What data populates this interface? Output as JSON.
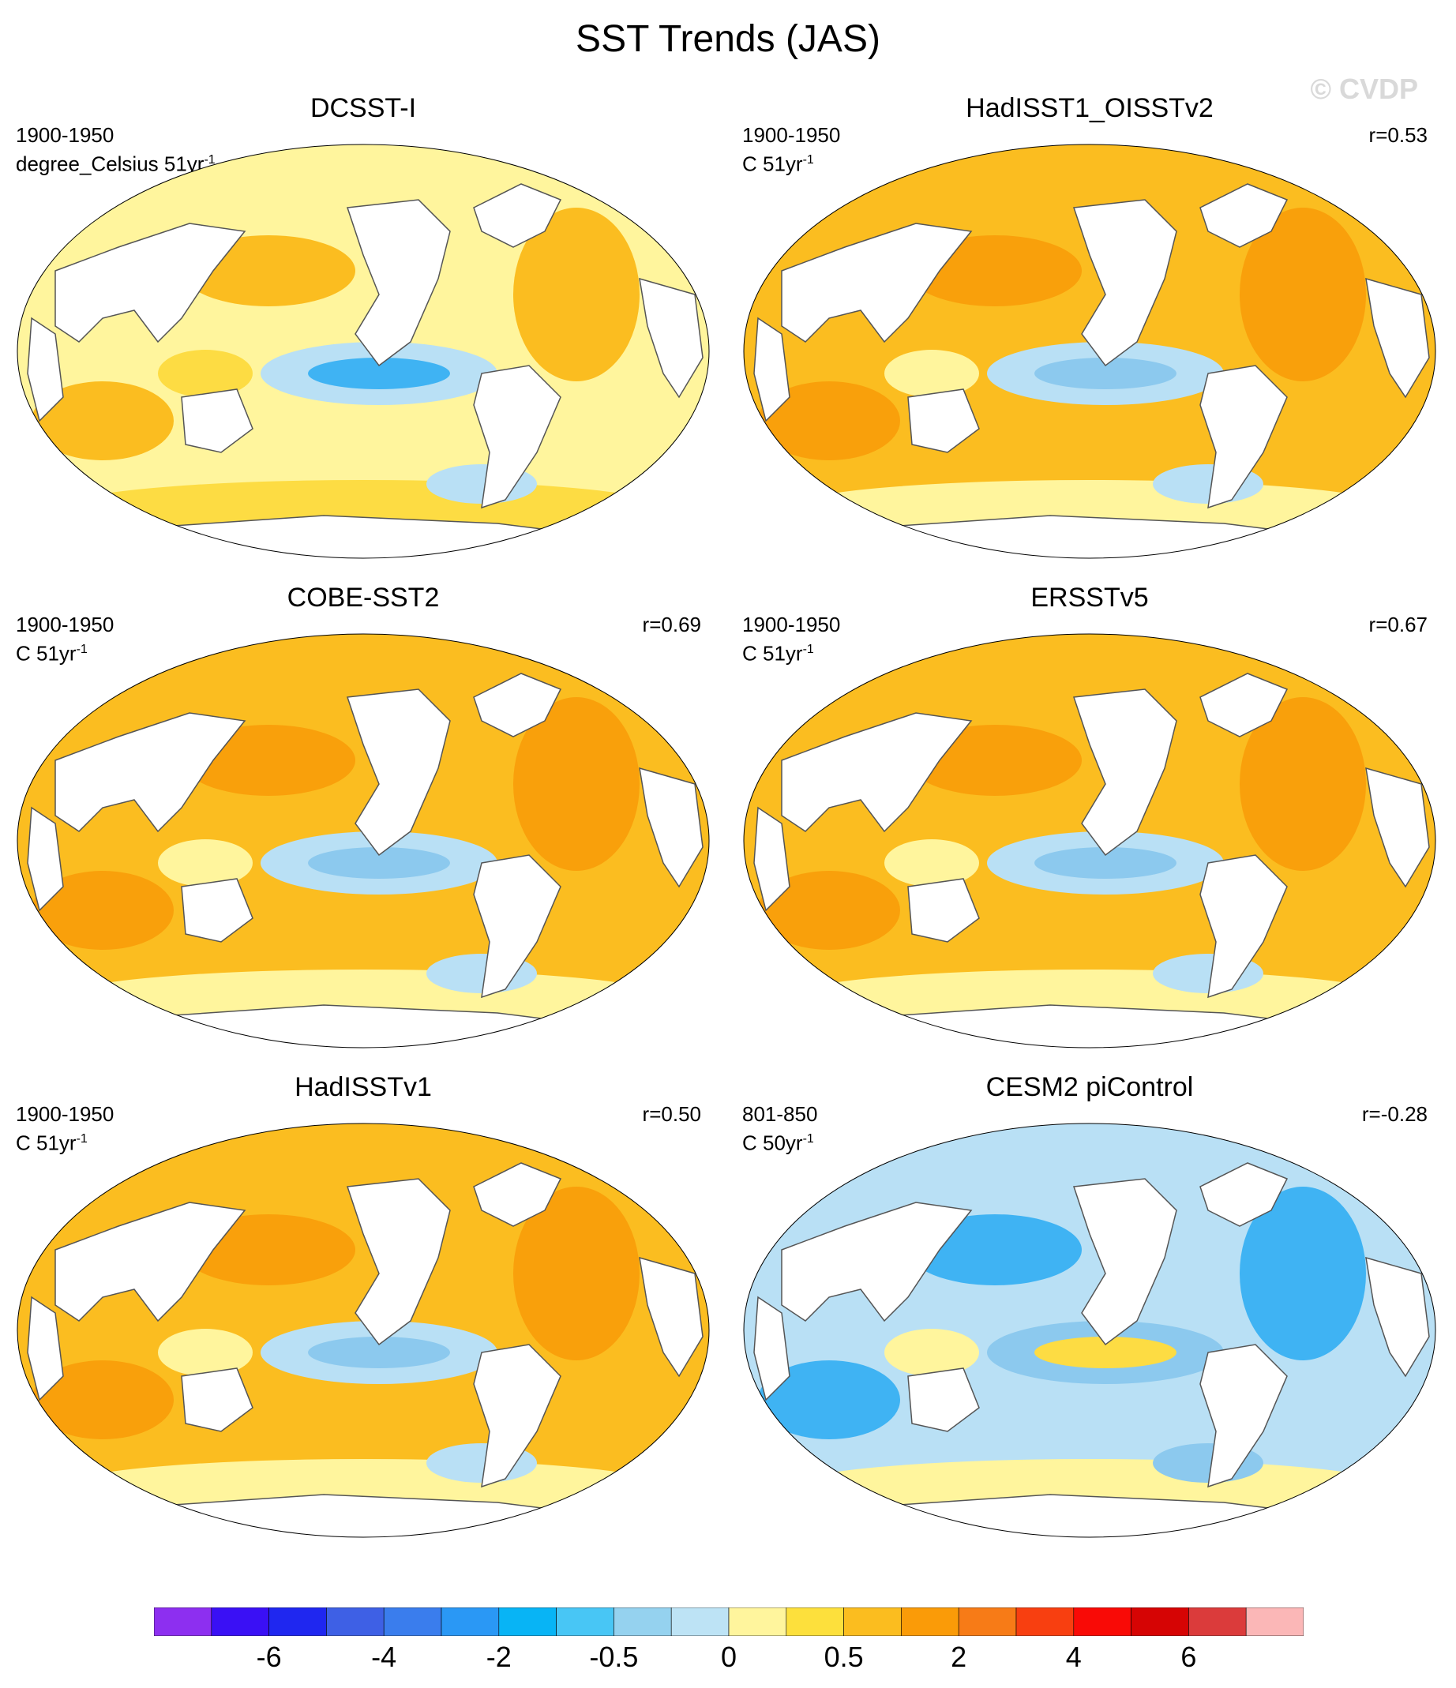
{
  "title": "SST Trends (JAS)",
  "watermark": "© CVDP",
  "colors": {
    "land": "#ffffff",
    "coast": "#555555",
    "neutral_pos": "#fff59d",
    "neutral_neg": "#b9e0f5",
    "warm1": "#fddc43",
    "warm2": "#fbbd20",
    "warm3": "#f9a00b",
    "cool1": "#8cc9ee",
    "cool2": "#3fb3f3"
  },
  "panels": [
    {
      "name": "DCSST-I",
      "period": "1900-1950",
      "units": "degree_Celsius 51yr",
      "units_sup": "-1",
      "corr": "",
      "palette": "mixed-cool-pacific"
    },
    {
      "name": "HadISST1_OISSTv2",
      "period": "1900-1950",
      "units": "C 51yr",
      "units_sup": "-1",
      "corr": "r=0.53",
      "palette": "warm"
    },
    {
      "name": "COBE-SST2",
      "period": "1900-1950",
      "units": "C 51yr",
      "units_sup": "-1",
      "corr": "r=0.69",
      "palette": "warm"
    },
    {
      "name": "ERSSTv5",
      "period": "1900-1950",
      "units": "C 51yr",
      "units_sup": "-1",
      "corr": "r=0.67",
      "palette": "warm"
    },
    {
      "name": "HadISSTv1",
      "period": "1900-1950",
      "units": "C 51yr",
      "units_sup": "-1",
      "corr": "r=0.50",
      "palette": "warm"
    },
    {
      "name": "CESM2 piControl",
      "period": "801-850",
      "units": "C 50yr",
      "units_sup": "-1",
      "corr": "r=-0.28",
      "palette": "cool"
    }
  ],
  "colorbar": {
    "colors": [
      "#8d2ff0",
      "#3a10f5",
      "#1f27f0",
      "#3e60e5",
      "#3a7ded",
      "#2a98f5",
      "#08b4f5",
      "#48c6f5",
      "#95d2ef",
      "#bde3f5",
      "#fff59d",
      "#fde03c",
      "#fbbd1f",
      "#fa9b08",
      "#f77b17",
      "#f83f10",
      "#f90a06",
      "#d60404",
      "#db3b3b",
      "#fbb7b7"
    ],
    "labels": [
      "-6",
      "-4",
      "-2",
      "-0.5",
      "0",
      "0.5",
      "2",
      "4",
      "6"
    ],
    "label_positions": [
      2,
      4,
      6,
      8,
      10,
      12,
      14,
      16,
      18
    ]
  }
}
